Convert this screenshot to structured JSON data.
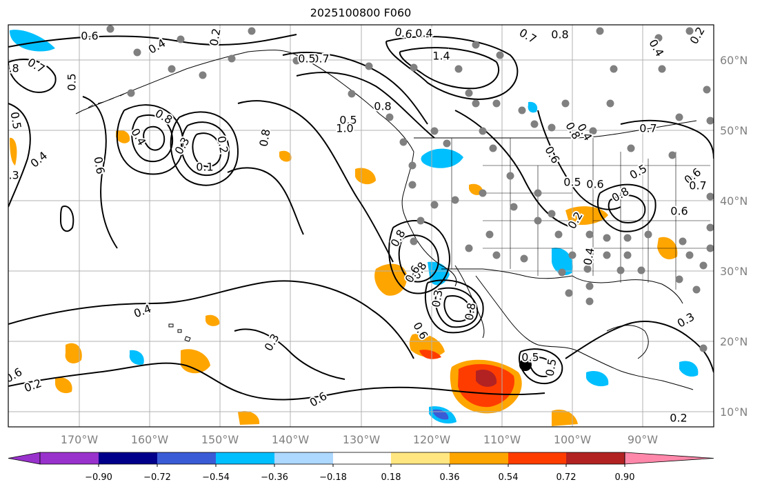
{
  "title": "2025100800 F060",
  "latitude_labels": [
    "60°N",
    "50°N",
    "40°N",
    "30°N",
    "20°N",
    "10°N"
  ],
  "longitude_labels": [
    "170°W",
    "160°W",
    "150°W",
    "140°W",
    "130°W",
    "120°W",
    "110°W",
    "100°W",
    "90°W"
  ],
  "colorbar": {
    "tick_labels": [
      "−0.90",
      "−0.72",
      "−0.54",
      "−0.36",
      "−0.18",
      "0.18",
      "0.36",
      "0.54",
      "0.72",
      "0.90"
    ],
    "colors": [
      "#9932cc",
      "#00008b",
      "#3a5bd6",
      "#00bfff",
      "#add8ff",
      "#ffffff",
      "#ffe680",
      "#ffa500",
      "#ff3c00",
      "#b22222",
      "#ff88aa"
    ]
  },
  "contour_labels": [
    "0.6",
    "0.4",
    "0.5",
    "0.7",
    "0.8",
    "0.6",
    "0.4",
    "0.3",
    "0.5",
    "0.6",
    "0.4",
    "1.4",
    "0.7",
    "0.8",
    "0.8",
    "0.5",
    "0.7",
    "0.5",
    "0.6",
    "0.2",
    "0.3",
    "0.4",
    "0.6",
    "0.1",
    "0.2",
    "0.3",
    "0.4",
    "0.8",
    "0.8",
    "1.0",
    "0.8",
    "0.6",
    "0.4",
    "0.5",
    "0.6",
    "0.8",
    "0.5",
    "0.6",
    "0.7",
    "0.6",
    "0.7",
    "0.8",
    "0.8",
    "0.6",
    "0.3",
    "0.8",
    "0.6",
    "0.5",
    "0.5",
    "0.4",
    "0.2",
    "0.3",
    "0.2",
    "0.2",
    "0.4",
    "0.2"
  ]
}
